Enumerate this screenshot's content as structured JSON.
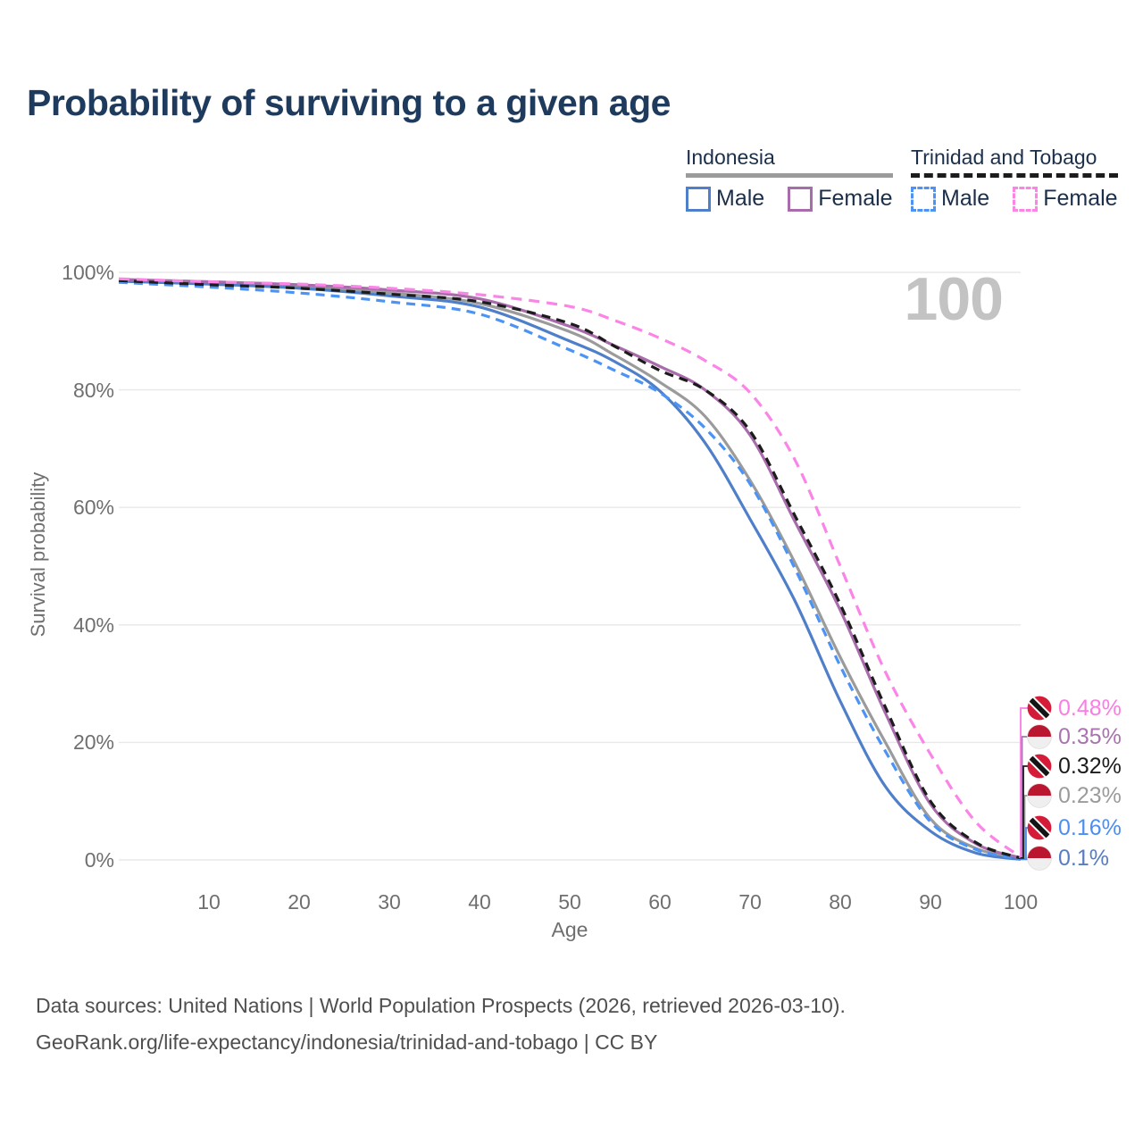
{
  "title": "Probability of surviving to a given age",
  "watermark_age": "100",
  "legend": {
    "groups": [
      {
        "country": "Indonesia",
        "line_style": "solid",
        "line_color": "#9b9b9b",
        "items": [
          {
            "label": "Male",
            "color": "#4f7fc9",
            "dashed": false
          },
          {
            "label": "Female",
            "color": "#a96cab",
            "dashed": false
          }
        ]
      },
      {
        "country": "Trinidad and Tobago",
        "line_style": "dashed",
        "line_color": "#1c1c1c",
        "items": [
          {
            "label": "Male",
            "color": "#4b93f5",
            "dashed": true
          },
          {
            "label": "Female",
            "color": "#fb85e6",
            "dashed": true
          }
        ]
      }
    ]
  },
  "axes": {
    "x_label": "Age",
    "y_label": "Survival probability",
    "x_ticks": [
      10,
      20,
      30,
      40,
      50,
      60,
      70,
      80,
      90,
      100
    ],
    "y_ticks": [
      "0%",
      "20%",
      "40%",
      "60%",
      "80%",
      "100%"
    ]
  },
  "chart_data": {
    "type": "line",
    "title": "Probability of surviving to a given age",
    "xlabel": "Age",
    "ylabel": "Survival probability",
    "xlim": [
      0,
      100
    ],
    "ylim": [
      0,
      100
    ],
    "grid": "horizontal-only",
    "legend_position": "top-right",
    "x": [
      0,
      10,
      20,
      30,
      40,
      50,
      55,
      60,
      65,
      70,
      75,
      80,
      85,
      90,
      95,
      100
    ],
    "series": [
      {
        "name": "Indonesia Overall",
        "country": "Indonesia",
        "group": "overall",
        "color": "#9b9b9b",
        "dash": "solid",
        "values": [
          98.7,
          98.2,
          97.6,
          96.5,
          94.7,
          89.9,
          85.9,
          81.3,
          75.5,
          64.6,
          50.5,
          34.5,
          20.0,
          7.0,
          2.0,
          0.23
        ],
        "end_label": {
          "text": "0.23%",
          "color": "#9b9b9b",
          "flag": "indonesia",
          "row": 3
        }
      },
      {
        "name": "Indonesia Male",
        "country": "Indonesia",
        "group": "male",
        "color": "#4f7fc9",
        "dash": "solid",
        "values": [
          98.5,
          98.0,
          97.3,
          96.0,
          94.1,
          88.3,
          84.8,
          79.8,
          71.0,
          58.0,
          44.0,
          27.0,
          12.5,
          4.9,
          1.2,
          0.1
        ],
        "end_label": {
          "text": "0.1%",
          "color": "#567cc2",
          "flag": "indonesia",
          "row": 5
        }
      },
      {
        "name": "Indonesia Female",
        "country": "Indonesia",
        "group": "female",
        "color": "#a96cab",
        "dash": "solid",
        "values": [
          98.8,
          98.4,
          97.9,
          97.0,
          95.5,
          90.8,
          87.5,
          84.0,
          80.0,
          72.3,
          57.5,
          42.5,
          25.0,
          9.5,
          2.8,
          0.35
        ],
        "end_label": {
          "text": "0.35%",
          "color": "#a873ae",
          "flag": "indonesia",
          "row": 1
        }
      },
      {
        "name": "Trinidad and Tobago Male",
        "country": "Trinidad and Tobago",
        "group": "male",
        "color": "#4b93f5",
        "dash": "dashed",
        "values": [
          98.3,
          97.5,
          96.5,
          95.0,
          92.9,
          86.8,
          83.3,
          79.5,
          73.5,
          64.0,
          49.5,
          33.0,
          18.5,
          6.5,
          1.8,
          0.16
        ],
        "end_label": {
          "text": "0.16%",
          "color": "#4b8ef2",
          "flag": "trinidad-and-tobago",
          "row": 4
        }
      },
      {
        "name": "Trinidad and Tobago Overall",
        "country": "Trinidad and Tobago",
        "group": "overall",
        "color": "#1c1c1c",
        "dash": "dashed",
        "values": [
          98.6,
          97.9,
          97.3,
          96.3,
          95.0,
          91.3,
          87.4,
          83.3,
          80.0,
          73.0,
          58.5,
          43.5,
          26.0,
          10.0,
          3.0,
          0.32
        ],
        "end_label": {
          "text": "0.32%",
          "color": "#1c1c1c",
          "flag": "trinidad-and-tobago",
          "row": 2
        }
      },
      {
        "name": "Trinidad and Tobago Female",
        "country": "Trinidad and Tobago",
        "group": "female",
        "color": "#fb85e6",
        "dash": "dashed",
        "values": [
          98.9,
          98.4,
          98.0,
          97.3,
          96.2,
          94.2,
          91.8,
          88.8,
          85.0,
          79.5,
          68.0,
          50.0,
          32.0,
          18.0,
          6.5,
          0.48
        ],
        "end_label": {
          "text": "0.48%",
          "color": "#fb7ce4",
          "flag": "trinidad-and-tobago",
          "row": 0
        }
      }
    ]
  },
  "footer": {
    "line1": "Data sources: United Nations | World Population Prospects (2026, retrieved 2026-03-10).",
    "line2": "GeoRank.org/life-expectancy/indonesia/trinidad-and-tobago | CC BY"
  }
}
